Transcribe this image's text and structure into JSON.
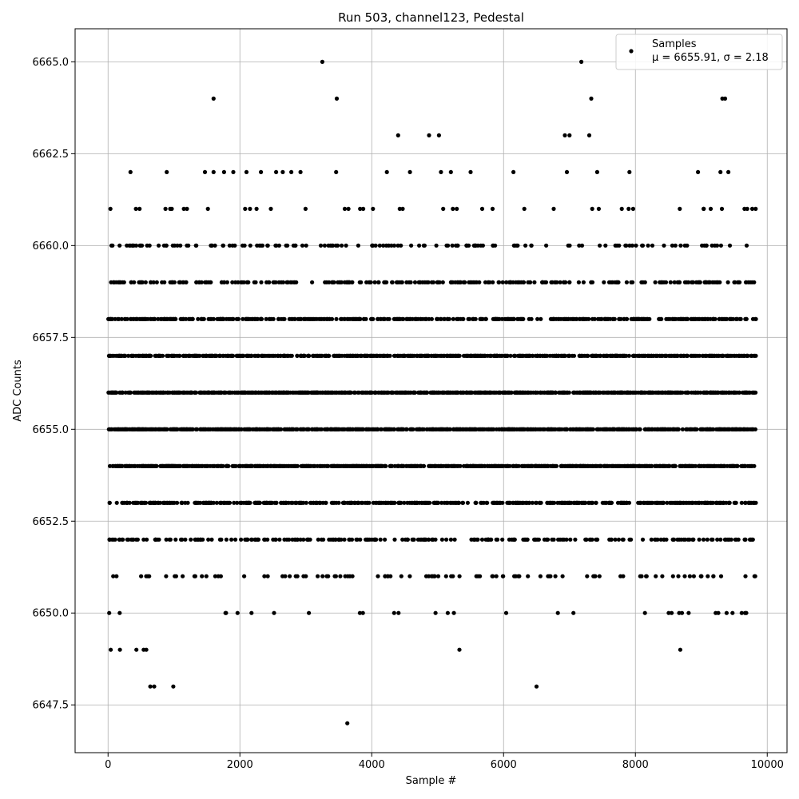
{
  "chart_data": {
    "type": "scatter",
    "title": "Run 503, channel123, Pedestal",
    "xlabel": "Sample #",
    "ylabel": "ADC Counts",
    "xlim": [
      -500,
      10300
    ],
    "ylim": [
      6646.2,
      6665.9
    ],
    "x_ticks": [
      0,
      2000,
      4000,
      6000,
      8000,
      10000
    ],
    "x_tick_labels": [
      "0",
      "2000",
      "4000",
      "6000",
      "8000",
      "10000"
    ],
    "y_ticks": [
      6647.5,
      6650.0,
      6652.5,
      6655.0,
      6657.5,
      6660.0,
      6662.5,
      6665.0
    ],
    "y_tick_labels": [
      "6647.5",
      "6650.0",
      "6652.5",
      "6655.0",
      "6657.5",
      "6660.0",
      "6662.5",
      "6665.0"
    ],
    "grid": true,
    "marker_color": "#000000",
    "legend": {
      "placement": "top-right",
      "entries": [
        {
          "name": "Samples",
          "stats": "μ = 6655.91, σ = 2.18"
        }
      ]
    },
    "series": [
      {
        "name": "Samples",
        "sample_count": 9830,
        "outlier_points": [
          [
            3250,
            6665
          ],
          [
            7180,
            6665
          ],
          [
            1600,
            6664
          ],
          [
            3470,
            6664
          ],
          [
            7330,
            6664
          ],
          [
            9320,
            6664
          ],
          [
            9360,
            6664
          ],
          [
            4400,
            6663
          ],
          [
            4870,
            6663
          ],
          [
            5020,
            6663
          ],
          [
            6930,
            6663
          ],
          [
            7000,
            6663
          ],
          [
            7300,
            6663
          ],
          [
            340,
            6662
          ],
          [
            890,
            6662
          ],
          [
            1470,
            6662
          ],
          [
            1600,
            6662
          ],
          [
            1760,
            6662
          ],
          [
            1900,
            6662
          ],
          [
            2100,
            6662
          ],
          [
            2320,
            6662
          ],
          [
            2550,
            6662
          ],
          [
            2650,
            6662
          ],
          [
            2780,
            6662
          ],
          [
            2920,
            6662
          ],
          [
            3460,
            6662
          ],
          [
            4230,
            6662
          ],
          [
            4580,
            6662
          ],
          [
            5050,
            6662
          ],
          [
            5200,
            6662
          ],
          [
            5500,
            6662
          ],
          [
            6150,
            6662
          ],
          [
            6960,
            6662
          ],
          [
            7420,
            6662
          ],
          [
            7910,
            6662
          ],
          [
            8950,
            6662
          ],
          [
            9290,
            6662
          ],
          [
            9410,
            6662
          ],
          [
            180,
            6649
          ],
          [
            40,
            6649
          ],
          [
            430,
            6649
          ],
          [
            540,
            6649
          ],
          [
            580,
            6649
          ],
          [
            5330,
            6649
          ],
          [
            8680,
            6649
          ],
          [
            640,
            6648
          ],
          [
            700,
            6648
          ],
          [
            990,
            6648
          ],
          [
            6500,
            6648
          ],
          [
            3630,
            6647
          ]
        ],
        "dense_levels": [
          6650,
          6651,
          6652,
          6653,
          6654,
          6655,
          6656,
          6657,
          6658,
          6659,
          6660,
          6661
        ],
        "level_weights": {
          "6650": 0.006,
          "6651": 0.02,
          "6652": 0.05,
          "6653": 0.1,
          "6654": 0.155,
          "6655": 0.18,
          "6656": 0.175,
          "6657": 0.135,
          "6658": 0.09,
          "6659": 0.055,
          "6660": 0.028,
          "6661": 0.008
        }
      }
    ]
  }
}
